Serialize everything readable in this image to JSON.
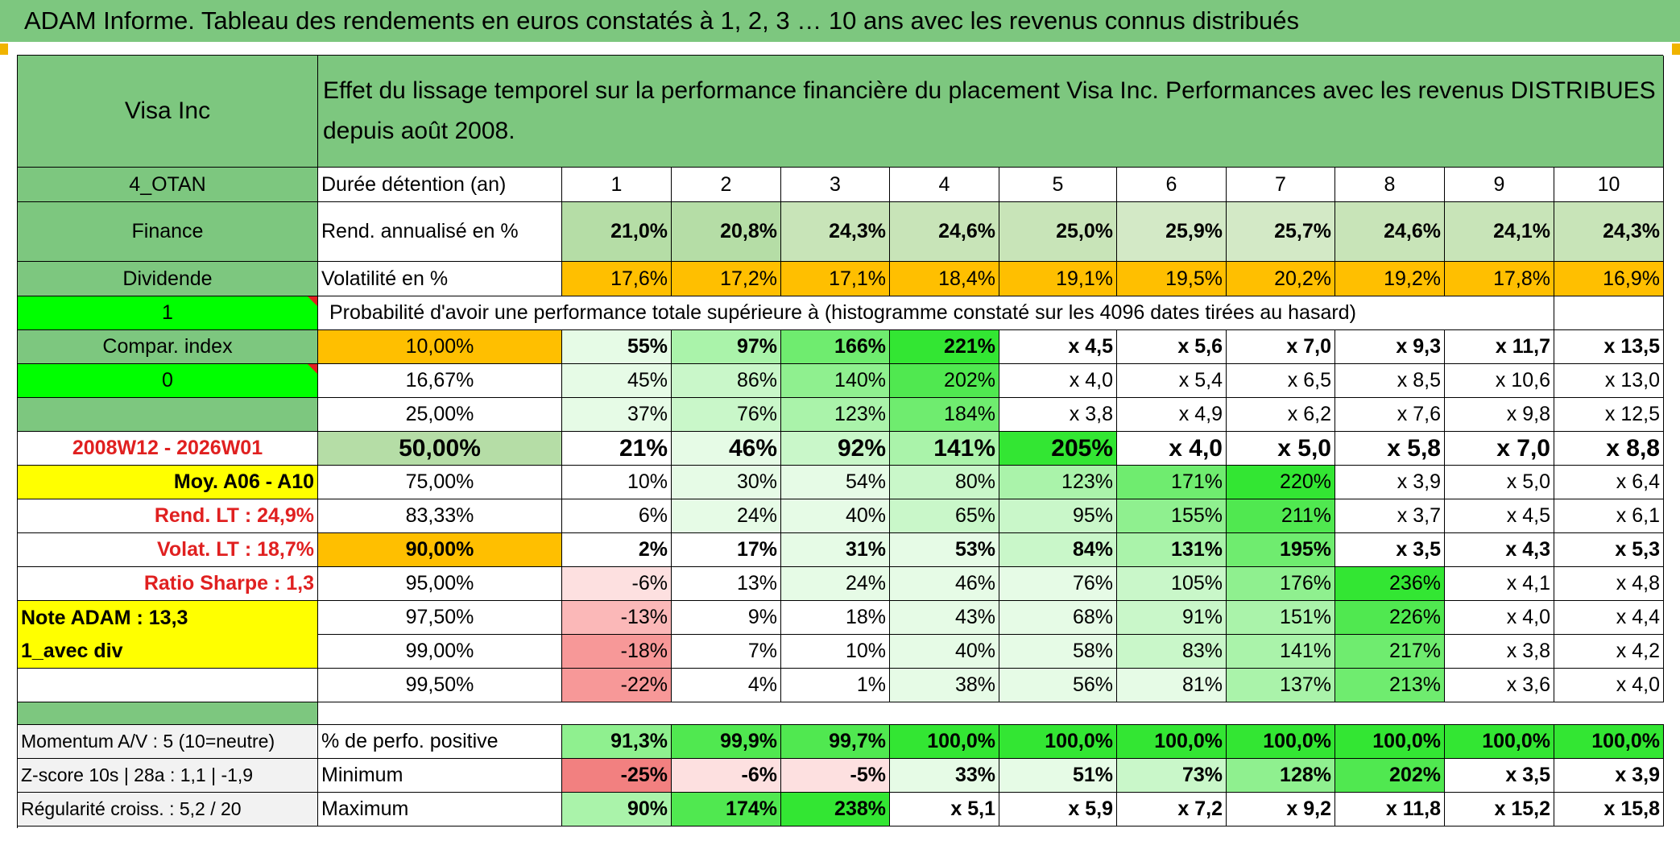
{
  "title": "ADAM Informe. Tableau des rendements en euros constatés à 1, 2, 3 … 10 ans avec les revenus connus distribués",
  "left": {
    "company": "Visa Inc",
    "code": "4_OTAN",
    "sector": "Finance",
    "income_type": "Dividende",
    "box1": "1",
    "compar_index_label": "Compar. index",
    "box0": "0",
    "period": "2008W12 - 2026W01",
    "moy": "Moy. A06 - A10",
    "rend_lt": "Rend. LT :    24,9%",
    "volat_lt": "Volat. LT :    18,7%",
    "sharpe": "Ratio Sharpe :    1,3",
    "note": "Note ADAM : 13,3",
    "avec_div": "1_avec div",
    "momentum": "Momentum A/V : 5 (10=neutre)",
    "zscore": "Z-score 10s | 28a : 1,1 | -1,9",
    "regularite": "Régularité croiss. : 5,2 / 20"
  },
  "header_desc": "Effet du lissage temporel sur la performance financière du placement Visa Inc. Performances avec les revenus DISTRIBUES depuis août 2008.",
  "duree_label": "Durée détention (an)",
  "years": [
    "1",
    "2",
    "3",
    "4",
    "5",
    "6",
    "7",
    "8",
    "9",
    "10"
  ],
  "rend_label": "Rend. annualisé en %",
  "rend": [
    "21,0%",
    "20,8%",
    "24,3%",
    "24,6%",
    "25,0%",
    "25,9%",
    "25,7%",
    "24,6%",
    "24,1%",
    "24,3%"
  ],
  "vol_label": "Volatilité en %",
  "vol": [
    "17,6%",
    "17,2%",
    "17,1%",
    "18,4%",
    "19,1%",
    "19,5%",
    "20,2%",
    "19,2%",
    "17,8%",
    "16,9%"
  ],
  "prob_label": "Probabilité d'avoir une performance totale supérieure à (histogramme constaté sur les 4096 dates tirées au hasard)",
  "prob_rows": [
    {
      "p": "10,00%",
      "v": [
        "55%",
        "97%",
        "166%",
        "221%",
        "x 4,5",
        "x 5,6",
        "x 7,0",
        "x 9,3",
        "x 11,7",
        "x 13,5"
      ]
    },
    {
      "p": "16,67%",
      "v": [
        "45%",
        "86%",
        "140%",
        "202%",
        "x 4,0",
        "x 5,4",
        "x 6,5",
        "x 8,5",
        "x 10,6",
        "x 13,0"
      ]
    },
    {
      "p": "25,00%",
      "v": [
        "37%",
        "76%",
        "123%",
        "184%",
        "x 3,8",
        "x 4,9",
        "x 6,2",
        "x 7,6",
        "x 9,8",
        "x 12,5"
      ]
    },
    {
      "p": "50,00%",
      "v": [
        "21%",
        "46%",
        "92%",
        "141%",
        "205%",
        "x 4,0",
        "x 5,0",
        "x 5,8",
        "x 7,0",
        "x 8,8"
      ]
    },
    {
      "p": "75,00%",
      "v": [
        "10%",
        "30%",
        "54%",
        "80%",
        "123%",
        "171%",
        "220%",
        "x 3,9",
        "x 5,0",
        "x 6,4"
      ]
    },
    {
      "p": "83,33%",
      "v": [
        "6%",
        "24%",
        "40%",
        "65%",
        "95%",
        "155%",
        "211%",
        "x 3,7",
        "x 4,5",
        "x 6,1"
      ]
    },
    {
      "p": "90,00%",
      "v": [
        "2%",
        "17%",
        "31%",
        "53%",
        "84%",
        "131%",
        "195%",
        "x 3,5",
        "x 4,3",
        "x 5,3"
      ]
    },
    {
      "p": "95,00%",
      "v": [
        "-6%",
        "13%",
        "24%",
        "46%",
        "76%",
        "105%",
        "176%",
        "236%",
        "x 4,1",
        "x 4,8"
      ]
    },
    {
      "p": "97,50%",
      "v": [
        "-13%",
        "9%",
        "18%",
        "43%",
        "68%",
        "91%",
        "151%",
        "226%",
        "x 4,0",
        "x 4,4"
      ]
    },
    {
      "p": "99,00%",
      "v": [
        "-18%",
        "7%",
        "10%",
        "40%",
        "58%",
        "83%",
        "141%",
        "217%",
        "x 3,8",
        "x 4,2"
      ]
    },
    {
      "p": "99,50%",
      "v": [
        "-22%",
        "4%",
        "1%",
        "38%",
        "56%",
        "81%",
        "137%",
        "213%",
        "x 3,6",
        "x 4,0"
      ]
    }
  ],
  "positive_label": "% de perfo. positive",
  "positive": [
    "91,3%",
    "99,9%",
    "99,7%",
    "100,0%",
    "100,0%",
    "100,0%",
    "100,0%",
    "100,0%",
    "100,0%",
    "100,0%"
  ],
  "min_label": "Minimum",
  "min": [
    "-25%",
    "-6%",
    "-5%",
    "33%",
    "51%",
    "73%",
    "128%",
    "202%",
    "x 3,5",
    "x 3,9"
  ],
  "max_label": "Maximum",
  "max": [
    "90%",
    "174%",
    "238%",
    "x 5,1",
    "x 5,9",
    "x 7,2",
    "x 9,2",
    "x 11,8",
    "x 15,2",
    "x 15,8"
  ]
}
